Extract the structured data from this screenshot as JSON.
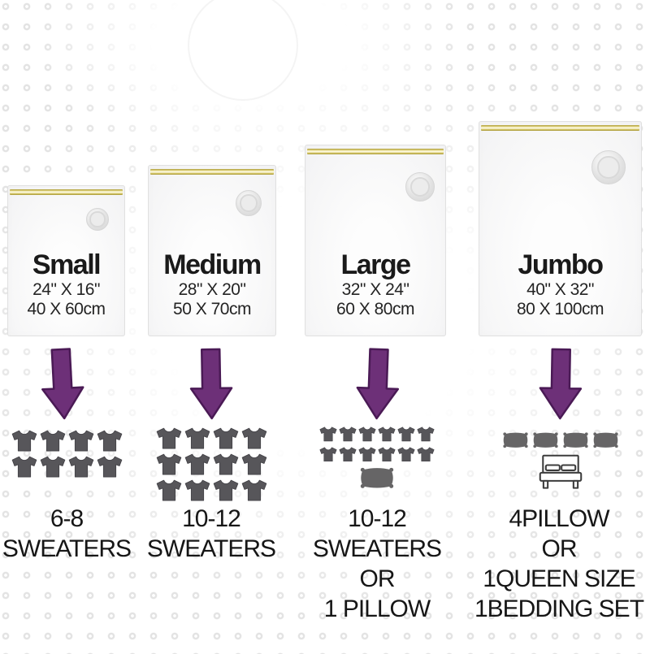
{
  "colors": {
    "arrow_fill": "#6d3078",
    "arrow_outline": "#4a1a55",
    "shirt_fill": "#57565a",
    "pillow_fill": "#666566",
    "bed_outline": "#3c3c3c",
    "zipper_gold": "#ac9d3d",
    "zipper_pale": "#fbf7d9",
    "background_dot": "#e3e3e3",
    "text": "#1a1a1a"
  },
  "bags": [
    {
      "size_label": "Small",
      "dimensions_in": "24\" X 16\"",
      "dimensions_cm": "40 X 60cm"
    },
    {
      "size_label": "Medium",
      "dimensions_in": "28\" X 20\"",
      "dimensions_cm": "50 X 70cm"
    },
    {
      "size_label": "Large",
      "dimensions_in": "32\" X 24\"",
      "dimensions_cm": "60 X 80cm"
    },
    {
      "size_label": "Jumbo",
      "dimensions_in": "40\" X 32\"",
      "dimensions_cm": "80 X 100cm"
    }
  ],
  "capacities": [
    {
      "lines": [
        "6-8",
        "SWEATERS"
      ]
    },
    {
      "lines": [
        "10-12",
        "SWEATERS"
      ]
    },
    {
      "lines": [
        "10-12",
        "SWEATERS",
        "OR",
        "1 PILLOW"
      ]
    },
    {
      "lines": [
        "4PILLOW",
        "OR",
        "1QUEEN SIZE",
        "1BEDDING SET"
      ]
    }
  ],
  "icon_columns": [
    {
      "shirt_rows": [
        4,
        4
      ],
      "shirt_size": 32
    },
    {
      "shirt_rows": [
        4,
        4,
        4
      ],
      "shirt_size": 32
    },
    {
      "shirt_rows": [
        6,
        6
      ],
      "shirt_size": 22,
      "pillow_count": 1,
      "pillow_w": 44
    },
    {
      "pillow_count": 4,
      "pillow_w": 33,
      "bed": true
    }
  ]
}
